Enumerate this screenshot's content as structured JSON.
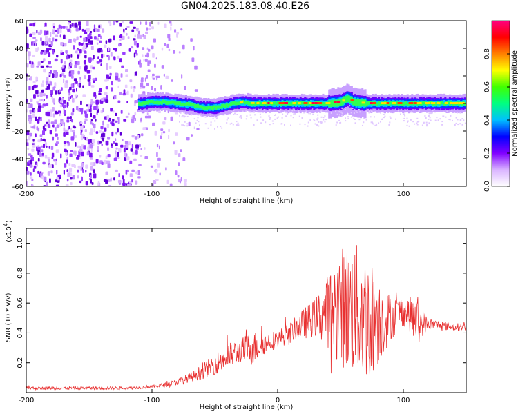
{
  "title": "GN04.2025.183.08.40.E26",
  "chart_data": [
    {
      "type": "heatmap",
      "title": "GN04.2025.183.08.40.E26",
      "xlabel": "Height of straight line (km)",
      "ylabel": "Frequency (Hz)",
      "xlim": [
        -200,
        150
      ],
      "ylim": [
        -60,
        60
      ],
      "xticks": [
        -200,
        -100,
        0,
        100
      ],
      "yticks": [
        -60,
        -40,
        -20,
        0,
        20,
        40,
        60
      ],
      "colorbar": {
        "label": "Normalized spectral amplitude",
        "range": [
          0.0,
          1.0
        ],
        "ticks": [
          0.0,
          0.2,
          0.4,
          0.6,
          0.8
        ],
        "colors": [
          "#ffffff",
          "#d9b3ff",
          "#8000ff",
          "#0000ff",
          "#00c0ff",
          "#00ff80",
          "#40ff00",
          "#ffff00",
          "#ff8000",
          "#ff0000",
          "#ff0080"
        ]
      },
      "ridge": {
        "x": [
          -110,
          -100,
          -90,
          -80,
          -70,
          -60,
          -50,
          -40,
          -30,
          -20,
          -10,
          0,
          20,
          40,
          50,
          55,
          60,
          70,
          80,
          100,
          120,
          150
        ],
        "y": [
          0,
          1,
          1,
          0,
          -1,
          -3,
          -3,
          -1,
          1,
          0,
          0,
          0,
          0,
          0,
          1,
          4,
          1,
          0,
          0,
          0,
          0,
          0
        ]
      },
      "noise_region": {
        "x_from": -200,
        "x_to": -75
      }
    },
    {
      "type": "line",
      "xlabel": "Height of straight line (km)",
      "ylabel": "SNR (10 * v/v)",
      "y_multiplier": "(x10^4)",
      "xlim": [
        -200,
        150
      ],
      "ylim": [
        0,
        1.1
      ],
      "xticks": [
        -200,
        -100,
        0,
        100
      ],
      "yticks": [
        0.2,
        0.4,
        0.6,
        0.8,
        1.0
      ],
      "color": "#e83030",
      "envelope": {
        "x": [
          -200,
          -160,
          -120,
          -100,
          -90,
          -80,
          -70,
          -60,
          -50,
          -40,
          -30,
          -20,
          -10,
          0,
          10,
          20,
          30,
          40,
          50,
          60,
          70,
          80,
          90,
          100,
          110,
          120,
          130,
          140,
          150
        ],
        "mid": [
          0.03,
          0.03,
          0.03,
          0.04,
          0.05,
          0.07,
          0.1,
          0.14,
          0.19,
          0.24,
          0.28,
          0.3,
          0.33,
          0.36,
          0.4,
          0.46,
          0.5,
          0.55,
          0.58,
          0.56,
          0.52,
          0.48,
          0.5,
          0.55,
          0.48,
          0.46,
          0.45,
          0.44,
          0.44
        ],
        "amp": [
          0.01,
          0.01,
          0.01,
          0.01,
          0.015,
          0.02,
          0.03,
          0.05,
          0.07,
          0.09,
          0.08,
          0.12,
          0.07,
          0.06,
          0.07,
          0.1,
          0.13,
          0.25,
          0.4,
          0.45,
          0.45,
          0.3,
          0.15,
          0.1,
          0.15,
          0.04,
          0.03,
          0.025,
          0.025
        ]
      }
    }
  ]
}
